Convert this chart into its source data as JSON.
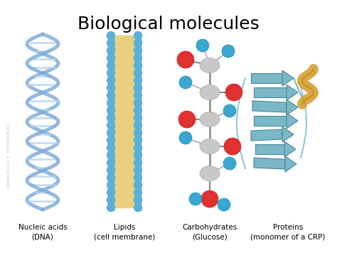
{
  "title": "Biological molecules",
  "title_fontsize": 18,
  "title_fontweight": "normal",
  "background_color": "#ffffff",
  "labels": [
    "Nucleic acids\n(DNA)",
    "Lipids\n(cell membrane)",
    "Carbohydrates\n(Glucose)",
    "Proteins\n(monomer of a CRP)"
  ],
  "label_fontsize": 7.5,
  "dna_strand_color": "#7baad8",
  "dna_rung_color": "#b8d4ee",
  "lipid_head_color": "#e8d080",
  "lipid_tail_color": "#5ab0d8",
  "carb_carbon_color": "#c8c8c8",
  "carb_oxygen_color": "#e03030",
  "carb_hydrogen_color": "#38a8d0",
  "protein_ribbon_color": "#7ab8c8",
  "protein_helix_color": "#d4a030",
  "protein_edge_color": "#4a8899",
  "watermark_color": "#aaaaaa"
}
